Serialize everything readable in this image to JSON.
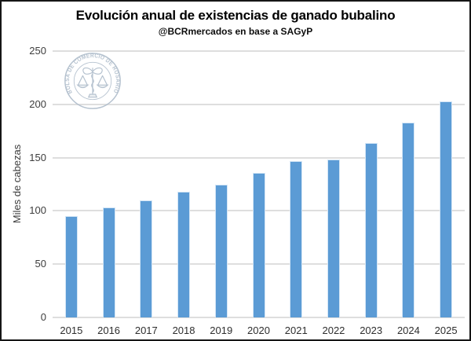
{
  "header": {
    "title": "Evolución anual de existencias de ganado bubalino",
    "subtitle": "@BCRmercados en base a SAGyP"
  },
  "logo": {
    "text": "BOLSA DE COMERCIO DE ROSARIO",
    "color": "#b2bfcd"
  },
  "chart_data": {
    "type": "bar",
    "title": "Evolución anual de existencias de ganado bubalino",
    "subtitle": "@BCRmercados en base a SAGyP",
    "categories": [
      "2015",
      "2016",
      "2017",
      "2018",
      "2019",
      "2020",
      "2021",
      "2022",
      "2023",
      "2024",
      "2025"
    ],
    "values": [
      95,
      103,
      110,
      118,
      125,
      136,
      147,
      148,
      164,
      183,
      203
    ],
    "xlabel": "",
    "ylabel": "Miles de cabezas",
    "ylim": [
      0,
      250
    ],
    "yticks": [
      0,
      50,
      100,
      150,
      200,
      250
    ],
    "grid": true,
    "legend": false,
    "bar_color": "#5b9bd5",
    "gridline_color": "#dedede"
  }
}
